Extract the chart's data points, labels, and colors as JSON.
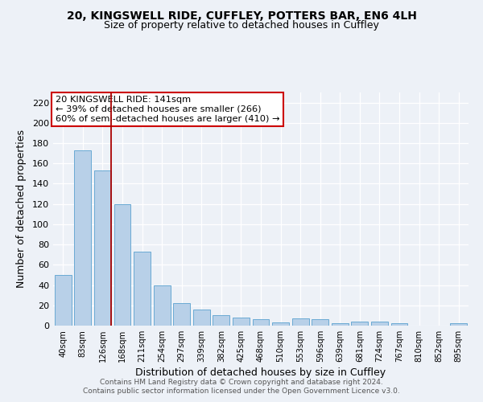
{
  "title1": "20, KINGSWELL RIDE, CUFFLEY, POTTERS BAR, EN6 4LH",
  "title2": "Size of property relative to detached houses in Cuffley",
  "xlabel": "Distribution of detached houses by size in Cuffley",
  "ylabel": "Number of detached properties",
  "categories": [
    "40sqm",
    "83sqm",
    "126sqm",
    "168sqm",
    "211sqm",
    "254sqm",
    "297sqm",
    "339sqm",
    "382sqm",
    "425sqm",
    "468sqm",
    "510sqm",
    "553sqm",
    "596sqm",
    "639sqm",
    "681sqm",
    "724sqm",
    "767sqm",
    "810sqm",
    "852sqm",
    "895sqm"
  ],
  "values": [
    50,
    173,
    153,
    120,
    73,
    40,
    22,
    16,
    10,
    8,
    6,
    3,
    7,
    6,
    2,
    4,
    4,
    2,
    0,
    0,
    2
  ],
  "bar_color": "#b8d0e8",
  "bar_edge_color": "#6aaad4",
  "vline_x_idx": 2,
  "vline_color": "#aa0000",
  "annotation_text": "20 KINGSWELL RIDE: 141sqm\n← 39% of detached houses are smaller (266)\n60% of semi-detached houses are larger (410) →",
  "annotation_box_color": "#ffffff",
  "annotation_box_edge": "#cc0000",
  "ylim": [
    0,
    230
  ],
  "yticks": [
    0,
    20,
    40,
    60,
    80,
    100,
    120,
    140,
    160,
    180,
    200,
    220
  ],
  "footer1": "Contains HM Land Registry data © Crown copyright and database right 2024.",
  "footer2": "Contains public sector information licensed under the Open Government Licence v3.0.",
  "bg_color": "#edf1f7",
  "grid_color": "#ffffff",
  "title1_fontsize": 10,
  "title2_fontsize": 9
}
